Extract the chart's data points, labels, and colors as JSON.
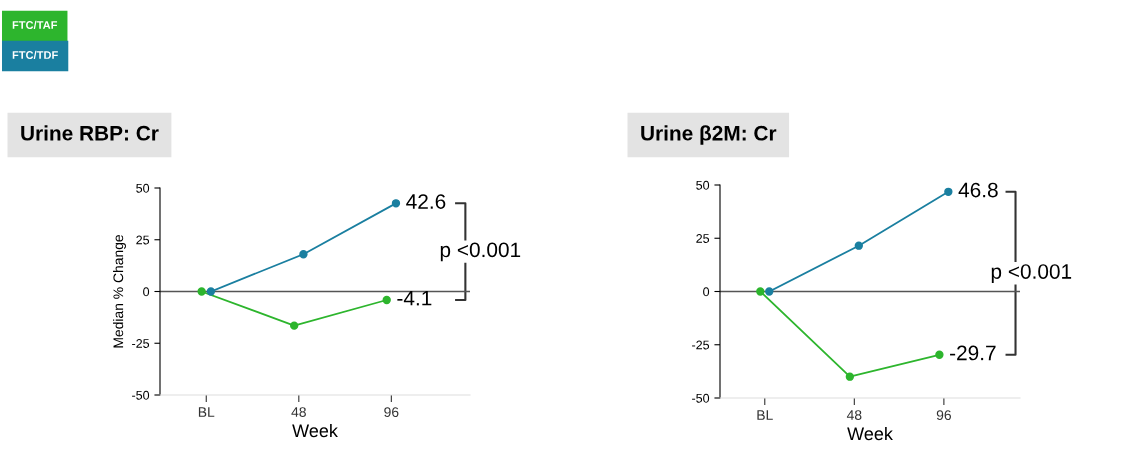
{
  "chart_data": [
    {
      "type": "line",
      "title": "Urine RBP: Cr",
      "xlabel": "Week",
      "ylabel": "Median % Change",
      "categories": [
        "BL",
        "48",
        "96"
      ],
      "ylim": [
        -50,
        50
      ],
      "yticks": [
        -50,
        -25,
        0,
        25,
        50
      ],
      "grid": false,
      "legend": "top left",
      "marker": "circle",
      "line_style": "solid",
      "series": [
        {
          "name": "FTC/TAF",
          "color": "#2db52d",
          "values": [
            0,
            -16.5,
            -4.1
          ],
          "value_labels": [
            null,
            null,
            "-4.1"
          ]
        },
        {
          "name": "FTC/TDF",
          "color": "#1a7fa0",
          "values": [
            0,
            18,
            42.6
          ],
          "value_labels": [
            null,
            null,
            "42.6"
          ]
        }
      ],
      "ref_lines": [
        {
          "axis": "y",
          "value": 0,
          "color": "#555555"
        }
      ],
      "annotations": [
        "p <0.001"
      ]
    },
    {
      "type": "line",
      "title": "Urine β2M: Cr",
      "xlabel": "Week",
      "categories": [
        "BL",
        "48",
        "96"
      ],
      "ylim": [
        -50,
        50
      ],
      "yticks": [
        -50,
        -25,
        0,
        25,
        50
      ],
      "grid": false,
      "marker": "circle",
      "line_style": "solid",
      "series": [
        {
          "color": "#2db52d",
          "values": [
            0,
            -40,
            -29.7
          ],
          "value_labels": [
            null,
            null,
            "-29.7"
          ]
        },
        {
          "color": "#1a7fa0",
          "values": [
            0,
            21.5,
            46.8
          ],
          "value_labels": [
            null,
            null,
            "46.8"
          ]
        }
      ],
      "ref_lines": [
        {
          "axis": "y",
          "value": 0,
          "color": "#555555"
        }
      ],
      "annotations": [
        "p <0.001"
      ]
    }
  ]
}
